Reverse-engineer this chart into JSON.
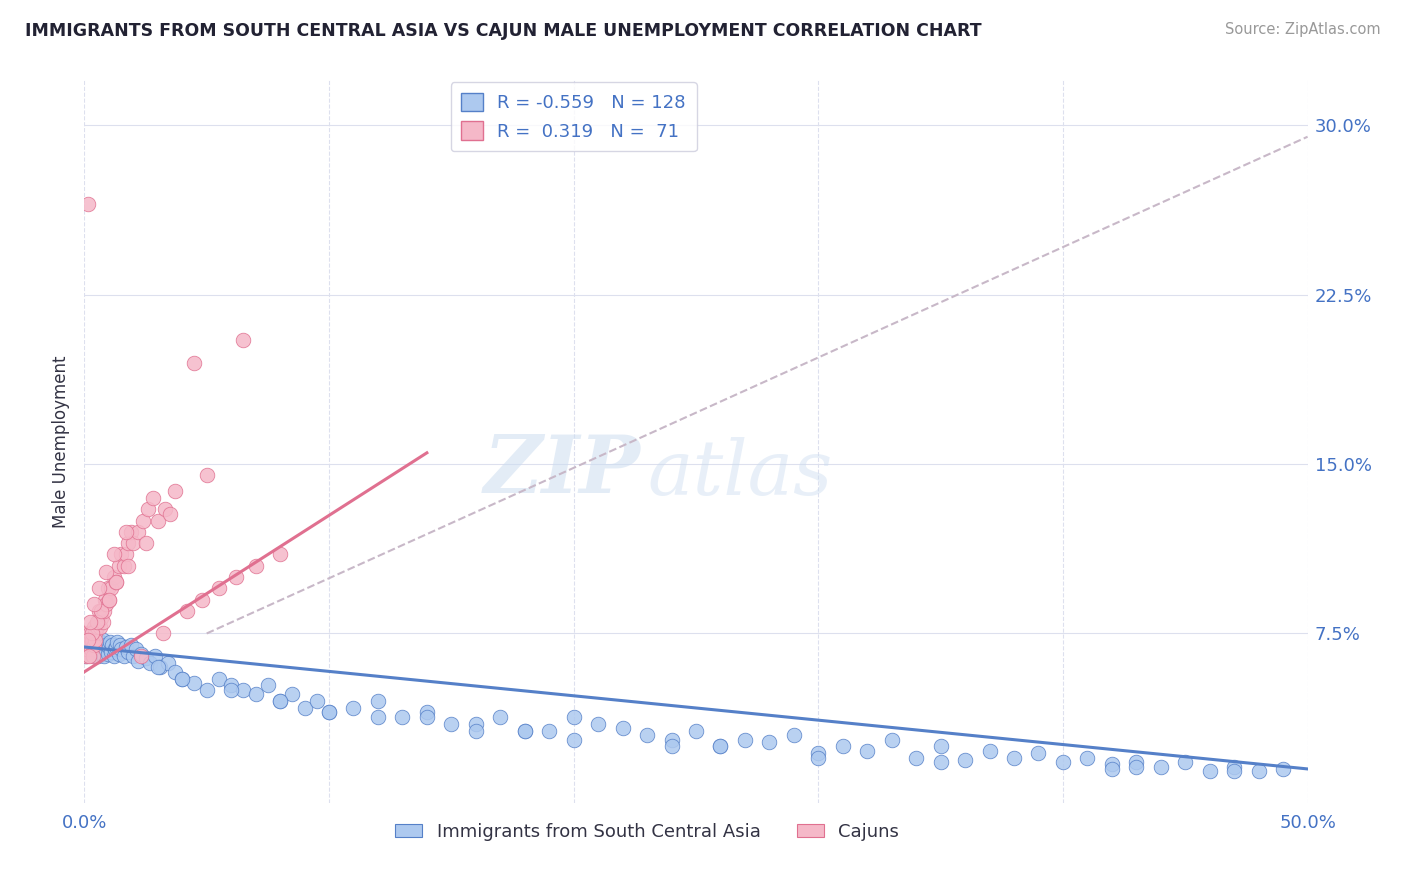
{
  "title": "IMMIGRANTS FROM SOUTH CENTRAL ASIA VS CAJUN MALE UNEMPLOYMENT CORRELATION CHART",
  "source": "Source: ZipAtlas.com",
  "ylabel": "Male Unemployment",
  "xlim": [
    0.0,
    50.0
  ],
  "ylim": [
    0.0,
    32.0
  ],
  "yticks_right": [
    7.5,
    15.0,
    22.5,
    30.0
  ],
  "ytick_labels_right": [
    "7.5%",
    "15.0%",
    "22.5%",
    "30.0%"
  ],
  "blue_R": -0.559,
  "blue_N": 128,
  "pink_R": 0.319,
  "pink_N": 71,
  "blue_color": "#adc9ef",
  "pink_color": "#f5b8c8",
  "blue_line_color": "#5580c8",
  "pink_line_color": "#e07090",
  "dashed_line_color": "#c8b8c8",
  "watermark_zip": "ZIP",
  "watermark_atlas": "atlas",
  "legend_label_blue": "Immigrants from South Central Asia",
  "legend_label_pink": "Cajuns",
  "title_color": "#222233",
  "axis_label_color": "#333344",
  "tick_color": "#4472c4",
  "background_color": "#ffffff",
  "grid_color": "#dde0ee",
  "blue_trend_x0": 0.0,
  "blue_trend_y0": 6.9,
  "blue_trend_x1": 50.0,
  "blue_trend_y1": 1.5,
  "pink_trend_x0": 0.0,
  "pink_trend_y0": 5.8,
  "pink_trend_x1": 14.0,
  "pink_trend_y1": 15.5,
  "dashed_x0": 5.0,
  "dashed_y0": 7.5,
  "dashed_x1": 50.0,
  "dashed_y1": 29.5,
  "blue_scatter_x": [
    0.05,
    0.08,
    0.1,
    0.12,
    0.15,
    0.18,
    0.2,
    0.22,
    0.25,
    0.28,
    0.3,
    0.32,
    0.35,
    0.38,
    0.4,
    0.42,
    0.45,
    0.48,
    0.5,
    0.52,
    0.55,
    0.58,
    0.6,
    0.62,
    0.65,
    0.68,
    0.7,
    0.72,
    0.75,
    0.78,
    0.8,
    0.85,
    0.9,
    0.95,
    1.0,
    1.05,
    1.1,
    1.15,
    1.2,
    1.25,
    1.3,
    1.35,
    1.4,
    1.45,
    1.5,
    1.6,
    1.7,
    1.8,
    1.9,
    2.0,
    2.1,
    2.2,
    2.3,
    2.5,
    2.7,
    2.9,
    3.1,
    3.4,
    3.7,
    4.0,
    4.5,
    5.0,
    5.5,
    6.0,
    6.5,
    7.0,
    7.5,
    8.0,
    8.5,
    9.0,
    9.5,
    10.0,
    11.0,
    12.0,
    13.0,
    14.0,
    15.0,
    17.0,
    19.0,
    21.0,
    23.0,
    25.0,
    27.0,
    29.0,
    31.0,
    33.0,
    35.0,
    37.0,
    39.0,
    41.0,
    43.0,
    45.0,
    47.0,
    49.0,
    20.0,
    22.0,
    28.0,
    32.0,
    38.0,
    42.0,
    46.0,
    16.0,
    18.0,
    24.0,
    26.0,
    30.0,
    36.0,
    40.0,
    44.0,
    48.0,
    3.0,
    4.0,
    6.0,
    8.0,
    10.0,
    12.0,
    16.0,
    20.0,
    24.0,
    30.0,
    35.0,
    42.0,
    14.0,
    18.0,
    26.0,
    34.0,
    43.0,
    47.0
  ],
  "blue_scatter_y": [
    7.0,
    6.5,
    7.2,
    6.8,
    7.0,
    6.9,
    7.1,
    6.7,
    7.3,
    6.6,
    7.0,
    6.8,
    7.2,
    6.5,
    6.9,
    7.1,
    6.6,
    7.0,
    6.8,
    7.3,
    6.5,
    7.0,
    6.7,
    6.9,
    7.1,
    6.8,
    6.6,
    7.0,
    6.9,
    7.2,
    6.5,
    6.8,
    7.0,
    6.6,
    6.9,
    7.1,
    6.7,
    7.0,
    6.5,
    6.8,
    6.9,
    7.1,
    6.6,
    7.0,
    6.8,
    6.5,
    6.9,
    6.7,
    7.0,
    6.5,
    6.8,
    6.3,
    6.6,
    6.4,
    6.2,
    6.5,
    6.0,
    6.2,
    5.8,
    5.5,
    5.3,
    5.0,
    5.5,
    5.2,
    5.0,
    4.8,
    5.2,
    4.5,
    4.8,
    4.2,
    4.5,
    4.0,
    4.2,
    4.5,
    3.8,
    4.0,
    3.5,
    3.8,
    3.2,
    3.5,
    3.0,
    3.2,
    2.8,
    3.0,
    2.5,
    2.8,
    2.5,
    2.3,
    2.2,
    2.0,
    1.8,
    1.8,
    1.6,
    1.5,
    3.8,
    3.3,
    2.7,
    2.3,
    2.0,
    1.7,
    1.4,
    3.5,
    3.2,
    2.8,
    2.5,
    2.2,
    1.9,
    1.8,
    1.6,
    1.4,
    6.0,
    5.5,
    5.0,
    4.5,
    4.0,
    3.8,
    3.2,
    2.8,
    2.5,
    2.0,
    1.8,
    1.5,
    3.8,
    3.2,
    2.5,
    2.0,
    1.6,
    1.4
  ],
  "pink_scatter_x": [
    0.05,
    0.08,
    0.1,
    0.12,
    0.15,
    0.18,
    0.2,
    0.22,
    0.25,
    0.28,
    0.3,
    0.32,
    0.35,
    0.38,
    0.4,
    0.42,
    0.45,
    0.5,
    0.55,
    0.6,
    0.65,
    0.7,
    0.75,
    0.8,
    0.85,
    0.9,
    0.95,
    1.0,
    1.1,
    1.2,
    1.3,
    1.4,
    1.5,
    1.6,
    1.7,
    1.8,
    1.9,
    2.0,
    2.2,
    2.4,
    2.6,
    2.8,
    3.0,
    3.3,
    3.7,
    4.2,
    4.8,
    5.5,
    6.2,
    7.0,
    8.0,
    0.2,
    0.3,
    0.5,
    0.7,
    1.0,
    1.3,
    1.8,
    2.5,
    3.5,
    5.0,
    0.15,
    0.25,
    0.4,
    0.6,
    0.9,
    1.2,
    1.7,
    2.3,
    3.2,
    4.5,
    6.5
  ],
  "pink_scatter_y": [
    6.5,
    7.0,
    6.8,
    7.5,
    26.5,
    6.9,
    7.2,
    7.0,
    7.5,
    6.8,
    7.0,
    7.2,
    6.5,
    7.8,
    7.0,
    7.5,
    7.2,
    7.8,
    8.0,
    8.5,
    7.8,
    8.2,
    8.0,
    8.5,
    9.0,
    8.8,
    9.5,
    9.0,
    9.5,
    10.0,
    9.8,
    10.5,
    11.0,
    10.5,
    11.0,
    11.5,
    12.0,
    11.5,
    12.0,
    12.5,
    13.0,
    13.5,
    12.5,
    13.0,
    13.8,
    8.5,
    9.0,
    9.5,
    10.0,
    10.5,
    11.0,
    6.5,
    7.5,
    8.0,
    8.5,
    9.0,
    9.8,
    10.5,
    11.5,
    12.8,
    14.5,
    7.2,
    8.0,
    8.8,
    9.5,
    10.2,
    11.0,
    12.0,
    6.5,
    7.5,
    19.5,
    20.5
  ]
}
